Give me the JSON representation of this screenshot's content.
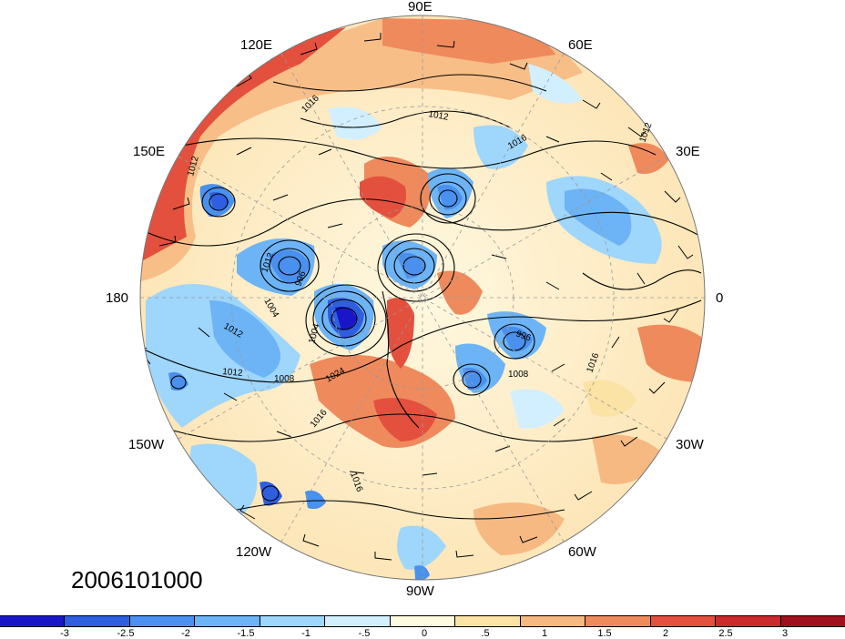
{
  "date_stamp": "2006101000",
  "map": {
    "projection": "north-polar-stereographic",
    "longitude_labels": [
      "90E",
      "60E",
      "30E",
      "0",
      "30W",
      "60W",
      "90W",
      "120W",
      "150W",
      "180",
      "150E",
      "120E"
    ],
    "contour_labels": [
      "1012",
      "1016",
      "1012",
      "1016",
      "1012",
      "1012",
      "1004",
      "996",
      "1012",
      "1012",
      "1008",
      "1004",
      "1024",
      "1016",
      "996",
      "1008",
      "1016",
      "1016"
    ]
  },
  "colorbar": {
    "tick_labels": [
      "-3",
      "-2.5",
      "-2",
      "-1.5",
      "-1",
      "-.5",
      "0",
      ".5",
      "1",
      "1.5",
      "2",
      "2.5",
      "3"
    ],
    "colors": [
      "#1a16c8",
      "#2f5fe0",
      "#4a90ee",
      "#6cb4f6",
      "#9fd6fb",
      "#d2efff",
      "#fffbe0",
      "#fbe3a6",
      "#f6b982",
      "#ef8a5d",
      "#e4503e",
      "#cb2a2f",
      "#a0101e"
    ]
  }
}
